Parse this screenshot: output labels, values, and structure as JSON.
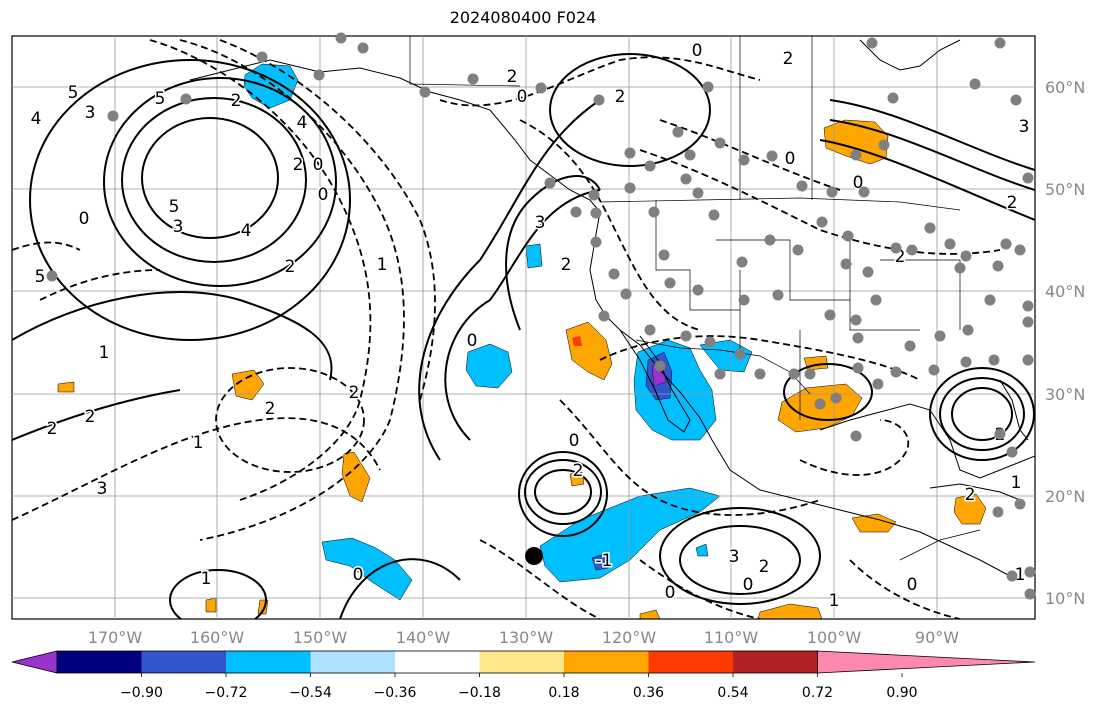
{
  "title": "2024080400 F024",
  "map": {
    "lon_labels": [
      "170°W",
      "160°W",
      "150°W",
      "140°W",
      "130°W",
      "120°W",
      "110°W",
      "100°W",
      "90°W"
    ],
    "lat_labels": [
      "60°N",
      "50°N",
      "40°N",
      "30°N",
      "20°N",
      "10°N"
    ],
    "contour_labels": [
      "5",
      "3",
      "4",
      "0",
      "5",
      "3",
      "4",
      "2",
      "0",
      "2",
      "1",
      "2",
      "2",
      "1",
      "3",
      "2",
      "1",
      "2",
      "0",
      "3",
      "2",
      "0",
      "2",
      "2",
      "0",
      "2",
      "0",
      "0",
      "2",
      "-1",
      "1",
      "2",
      "0",
      "0",
      "2",
      "3",
      "0",
      "0",
      "1",
      "0",
      "2",
      "1",
      "3",
      "2",
      "2",
      "1",
      "2",
      "4",
      "0",
      "5",
      "5"
    ],
    "colors": {
      "neg_deep": "#9933cc",
      "neg_navy": "#000080",
      "neg_blue": "#3355cc",
      "neg_cyan": "#00bfff",
      "neg_light": "#aee0ff",
      "pos_yellow": "#ffe88a",
      "pos_orange": "#ffa500",
      "pos_red": "#ff3a00",
      "pos_darkred": "#b22222",
      "pos_pink": "#ff88b0",
      "station": "#808080",
      "marker": "#000000"
    }
  },
  "colorbar": {
    "tick_labels": [
      "−0.90",
      "−0.72",
      "−0.54",
      "−0.36",
      "−0.18",
      "0.18",
      "0.36",
      "0.54",
      "0.72",
      "0.90"
    ],
    "colors": [
      "#9933cc",
      "#000080",
      "#3355cc",
      "#00bfff",
      "#aee0ff",
      "#ffffff",
      "#ffe88a",
      "#ffa500",
      "#ff3a00",
      "#b22222",
      "#ff88b0"
    ]
  }
}
